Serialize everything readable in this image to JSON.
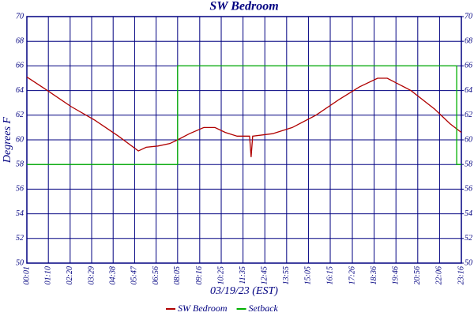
{
  "chart_data": {
    "type": "line",
    "title": "SW Bedroom",
    "xlabel": "03/19/23 (EST)",
    "ylabel": "Degrees F",
    "xlim": [
      1,
      1396
    ],
    "xticks": [
      {
        "value": 1,
        "label": "00:01"
      },
      {
        "value": 70,
        "label": "01:10"
      },
      {
        "value": 140,
        "label": "02:20"
      },
      {
        "value": 209,
        "label": "03:29"
      },
      {
        "value": 278,
        "label": "04:38"
      },
      {
        "value": 347,
        "label": "05:47"
      },
      {
        "value": 416,
        "label": "06:56"
      },
      {
        "value": 485,
        "label": "08:05"
      },
      {
        "value": 556,
        "label": "09:16"
      },
      {
        "value": 625,
        "label": "10:25"
      },
      {
        "value": 695,
        "label": "11:35"
      },
      {
        "value": 765,
        "label": "12:45"
      },
      {
        "value": 835,
        "label": "13:55"
      },
      {
        "value": 905,
        "label": "15:05"
      },
      {
        "value": 975,
        "label": "16:15"
      },
      {
        "value": 1046,
        "label": "17:26"
      },
      {
        "value": 1116,
        "label": "18:36"
      },
      {
        "value": 1186,
        "label": "19:46"
      },
      {
        "value": 1256,
        "label": "20:56"
      },
      {
        "value": 1326,
        "label": "22:06"
      },
      {
        "value": 1396,
        "label": "23:16"
      }
    ],
    "ylim": [
      50,
      70
    ],
    "yticks": [
      50,
      52,
      54,
      56,
      58,
      60,
      62,
      64,
      66,
      68,
      70
    ],
    "y2lim": [
      50,
      70
    ],
    "y2ticks": [
      50,
      52,
      54,
      56,
      58,
      60,
      62,
      64,
      66,
      68,
      70
    ],
    "grid": true,
    "legend": "bottom",
    "series": [
      {
        "name": "SW Bedroom",
        "color": "#b00000",
        "x": [
          1,
          67,
          143,
          219,
          295,
          359,
          384,
          422,
          460,
          485,
          523,
          569,
          605,
          638,
          676,
          716,
          721,
          726,
          790,
          853,
          929,
          1005,
          1069,
          1127,
          1158,
          1234,
          1310,
          1360,
          1396
        ],
        "values": [
          65.1,
          64.0,
          62.7,
          61.6,
          60.3,
          59.1,
          59.4,
          59.5,
          59.7,
          60.0,
          60.5,
          61.0,
          61.0,
          60.6,
          60.3,
          60.3,
          58.6,
          60.3,
          60.5,
          61.0,
          62.0,
          63.3,
          64.3,
          65.0,
          65.0,
          64.0,
          62.5,
          61.3,
          60.6
        ]
      },
      {
        "name": "Setback",
        "color": "#00b000",
        "x": [
          1,
          485,
          485,
          1381,
          1381,
          1396
        ],
        "values": [
          58,
          58,
          66,
          66,
          58,
          58
        ]
      }
    ]
  }
}
